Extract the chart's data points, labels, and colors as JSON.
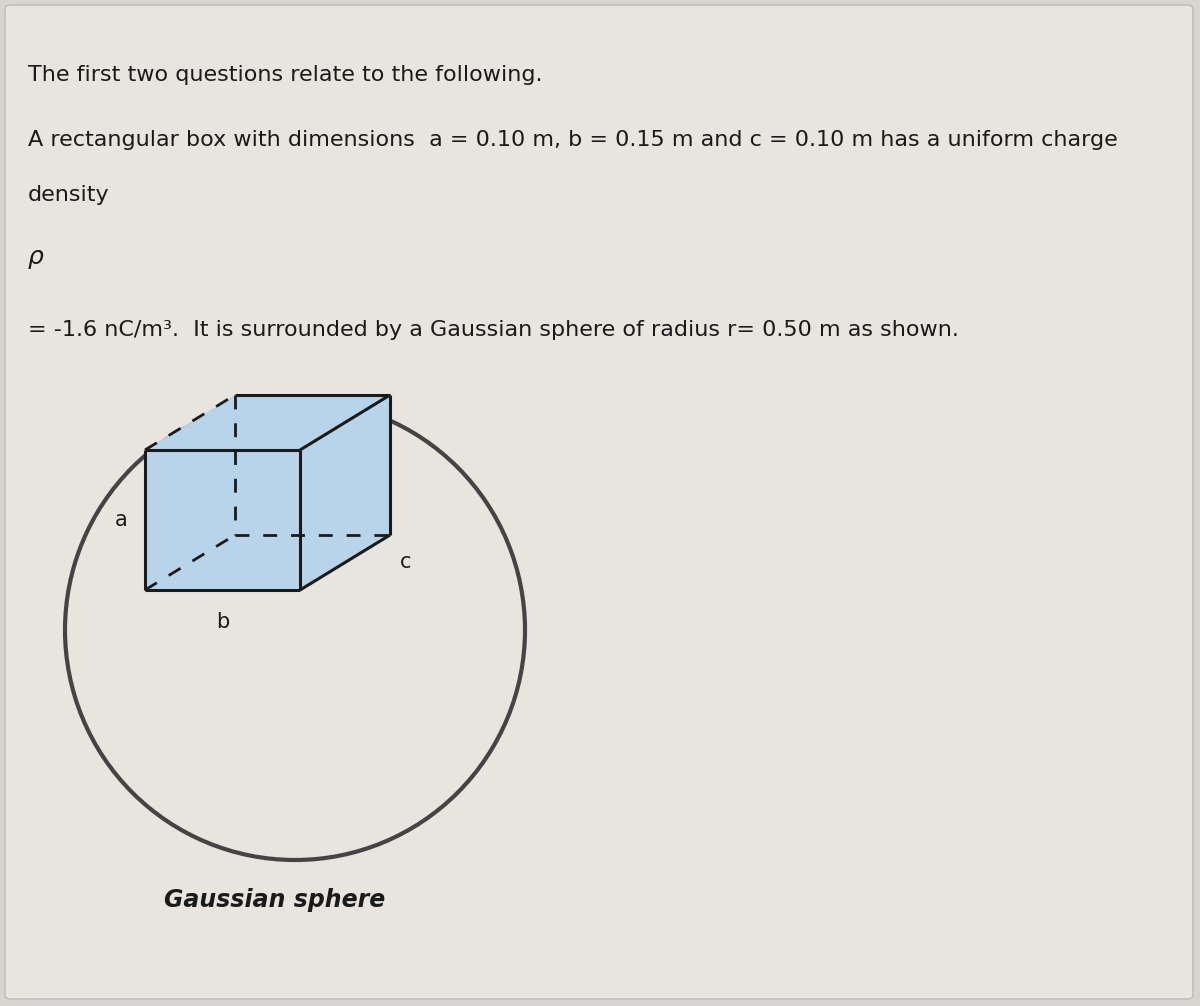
{
  "background_color": "#d8d5ce",
  "inner_background": "#e8e5de",
  "title_line1": "The first two questions relate to the following.",
  "title_line2": "A rectangular box with dimensions  a = 0.10 m, b = 0.15 m and c = 0.10 m has a uniform charge",
  "title_line3": "density",
  "rho_symbol": "ρ",
  "line4": "= -1.6 nC/m³.  It is surrounded by a Gaussian sphere of radius r= 0.50 m as shown.",
  "gaussian_label": "Gaussian sphere",
  "label_a": "a",
  "label_b": "b",
  "label_c": "c",
  "box_face_color": "#b8d4ea",
  "box_edge_color": "#1a1a1a",
  "circle_color": "#444444",
  "text_color": "#1a1a1a",
  "font_size_main": 16,
  "font_size_label": 15,
  "font_size_gaussian": 17,
  "font_size_rho": 18
}
